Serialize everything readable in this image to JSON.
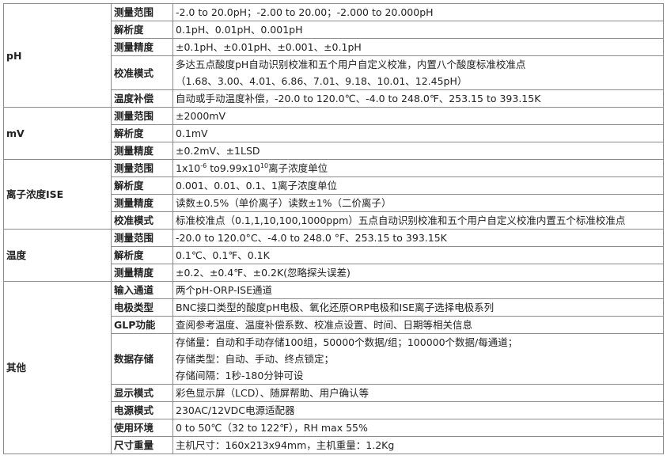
{
  "groups": [
    {
      "name": "pH",
      "rows": [
        {
          "label": "测量范围",
          "lines": [
            "-2.0 to 20.0pH；-2.00 to 20.00；-2.000 to 20.000pH"
          ]
        },
        {
          "label": "解析度",
          "lines": [
            "0.1pH、0.01pH、0.001pH"
          ]
        },
        {
          "label": "测量精度",
          "lines": [
            "±0.1pH、±0.01pH、±0.001、±0.1pH"
          ]
        },
        {
          "label": "校准模式",
          "lines": [
            "多达五点酸度pH自动识别校准和五个用户自定义校准，内置八个酸度标准校准点",
            "（1.68、3.00、4.01、6.86、7.01、9.18、10.01、12.45pH）"
          ]
        },
        {
          "label": "温度补偿",
          "lines": [
            "自动或手动温度补偿，-20.0 to 120.0℃、-4.0 to 248.0℉、253.15 to 393.15K"
          ]
        }
      ]
    },
    {
      "name": "mV",
      "rows": [
        {
          "label": "测量范围",
          "lines": [
            "±2000mV"
          ]
        },
        {
          "label": "解析度",
          "lines": [
            "0.1mV"
          ]
        },
        {
          "label": "测量精度",
          "lines": [
            "±0.2mV、±1LSD"
          ]
        }
      ]
    },
    {
      "name": "离子浓度ISE",
      "rows": [
        {
          "label": "测量范围",
          "parts": [
            "1x10",
            "-6",
            " to9.99x10",
            "10",
            "离子浓度单位"
          ]
        },
        {
          "label": "解析度",
          "lines": [
            "0.001、0.01、0.1、1离子浓度单位"
          ]
        },
        {
          "label": "测量精度",
          "lines": [
            "读数±0.5%（单价离子）读数±1%（二价离子）"
          ]
        },
        {
          "label": "校准模式",
          "lines": [
            "标准校准点（0.1,1,10,100,1000ppm）五点自动识别校准和五个用户自定义校准内置五个标准校准点"
          ]
        }
      ]
    },
    {
      "name": "温度",
      "rows": [
        {
          "label": "测量范围",
          "lines": [
            "-20.0 to 120.0°C、-4.0 to 248.0 °F、253.15 to 393.15K"
          ]
        },
        {
          "label": "解析度",
          "lines": [
            "0.1℃、0.1℉、0.1K"
          ]
        },
        {
          "label": "测量精度",
          "lines": [
            "±0.2、±0.4℉、±0.2K(忽略探头误差)"
          ]
        }
      ]
    },
    {
      "name": "其他",
      "rows": [
        {
          "label": "输入通道",
          "lines": [
            "两个pH-ORP-ISE通道"
          ]
        },
        {
          "label": "电极类型",
          "lines": [
            "BNC接口类型的酸度pH电极、氧化还原ORP电极和ISE离子选择电极系列"
          ]
        },
        {
          "label": "GLP功能",
          "lines": [
            "查阅参考温度、温度补偿系数、校准点设置、时间、日期等相关信息"
          ]
        },
        {
          "label": "数据存储",
          "lines": [
            "存储量：自动和手动存储100组，50000个数据/组；100000个数据/每通道；",
            "存储类型：自动、手动、终点锁定；",
            "存储间隔：1秒-180分钟可设"
          ]
        },
        {
          "label": "显示模式",
          "lines": [
            "彩色显示屏（LCD）、随屏帮助、用户确认等"
          ]
        },
        {
          "label": "电源模式",
          "lines": [
            "230AC/12VDC电源适配器"
          ]
        },
        {
          "label": "使用环境",
          "lines": [
            "0 to 50℃（32 to 122℉），RH max 55%"
          ]
        },
        {
          "label": "尺寸重量",
          "lines": [
            "主机尺寸：160x213x94mm，主机重量：1.2Kg"
          ]
        }
      ]
    }
  ]
}
